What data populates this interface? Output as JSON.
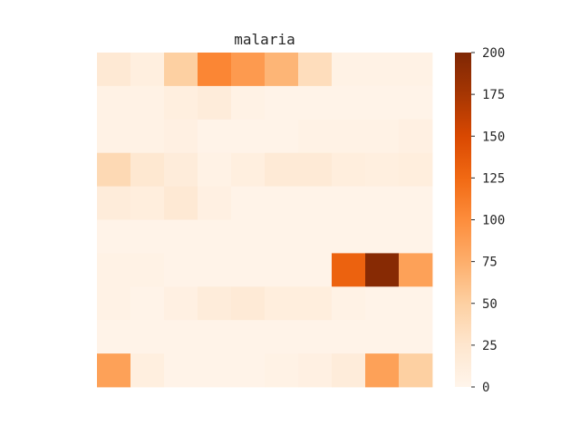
{
  "chart_data": {
    "type": "heatmap",
    "title": "malaria",
    "colormap": "Oranges",
    "color_stops": [
      "#fff5eb",
      "#fee6ce",
      "#fdd0a2",
      "#fdae6b",
      "#fd8d3c",
      "#f16913",
      "#d94801",
      "#a63603",
      "#7f2704"
    ],
    "vmin": 0,
    "vmax": 200,
    "colorbar_ticks": [
      0,
      25,
      50,
      75,
      100,
      125,
      150,
      175,
      200
    ],
    "colorbar_tick_labels": [
      "0",
      "25",
      "50",
      "75",
      "100",
      "125",
      "150",
      "175",
      "200"
    ],
    "rows": 10,
    "cols": 10,
    "values": [
      [
        20,
        10,
        50,
        105,
        90,
        70,
        35,
        5,
        5,
        5
      ],
      [
        5,
        5,
        10,
        15,
        5,
        3,
        3,
        3,
        3,
        3
      ],
      [
        5,
        5,
        8,
        3,
        3,
        3,
        5,
        5,
        5,
        8
      ],
      [
        40,
        22,
        15,
        5,
        10,
        18,
        18,
        12,
        10,
        12
      ],
      [
        15,
        12,
        20,
        8,
        3,
        3,
        3,
        3,
        3,
        3
      ],
      [
        3,
        3,
        3,
        3,
        3,
        3,
        3,
        3,
        3,
        3
      ],
      [
        5,
        5,
        3,
        3,
        3,
        3,
        3,
        130,
        195,
        85
      ],
      [
        5,
        3,
        8,
        15,
        18,
        12,
        12,
        5,
        3,
        3
      ],
      [
        3,
        3,
        3,
        3,
        3,
        3,
        3,
        3,
        3,
        3
      ],
      [
        85,
        10,
        3,
        3,
        3,
        5,
        8,
        15,
        85,
        50
      ]
    ]
  }
}
